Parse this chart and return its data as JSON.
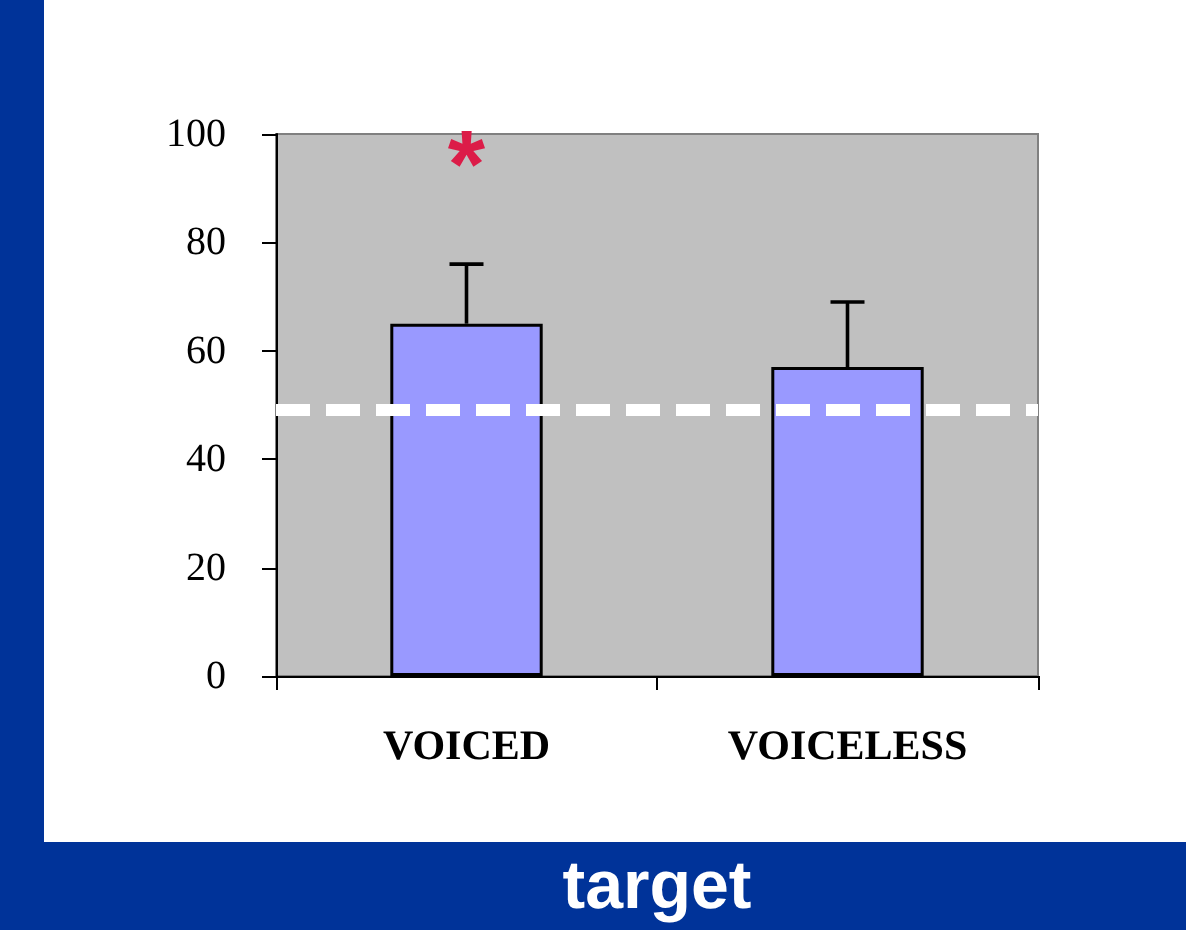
{
  "chart_data": {
    "type": "bar",
    "xlabel": "target",
    "categories": [
      "VOICED",
      "VOICELESS"
    ],
    "values": [
      65,
      57
    ],
    "color": "#9999ff",
    "errors": [
      [
        65,
        76
      ],
      [
        57,
        69
      ]
    ],
    "ylim": [
      0,
      100
    ],
    "yticks": [
      0,
      20,
      40,
      60,
      80,
      100
    ],
    "ref_lines": [
      {
        "axis": "y",
        "value": 49,
        "color": "#ffffff",
        "line_style": "dashed"
      }
    ],
    "annotations": [
      "*"
    ]
  }
}
